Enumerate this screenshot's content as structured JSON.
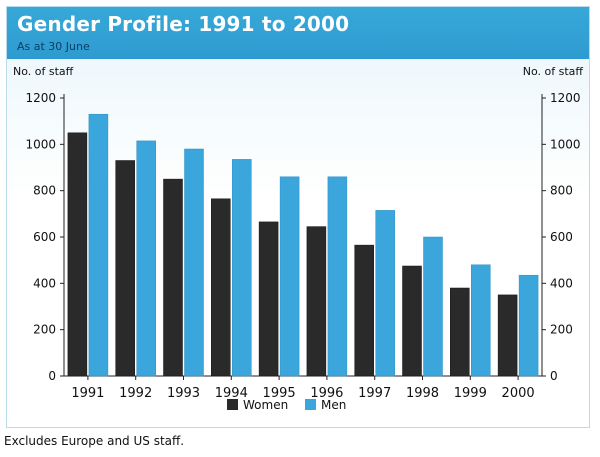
{
  "header": {
    "title": "Gender Profile: 1991 to 2000",
    "subtitle": "As at 30 June"
  },
  "axis": {
    "left_label": "No. of staff",
    "right_label": "No. of staff"
  },
  "footnote": "Excludes Europe and US staff.",
  "colors": {
    "header": "#2e9bd0",
    "women": "#2a2a2a",
    "men": "#3aa6dc"
  },
  "chart_data": {
    "type": "bar",
    "title": "Gender Profile: 1991 to 2000",
    "subtitle": "As at 30 June",
    "xlabel": "",
    "ylabel": "No. of staff",
    "ylim": [
      0,
      1200
    ],
    "yticks": [
      0,
      200,
      400,
      600,
      800,
      1000,
      1200
    ],
    "categories": [
      "1991",
      "1992",
      "1993",
      "1994",
      "1995",
      "1996",
      "1997",
      "1998",
      "1999",
      "2000"
    ],
    "series": [
      {
        "name": "Women",
        "values": [
          1050,
          930,
          850,
          765,
          665,
          645,
          565,
          475,
          380,
          350
        ]
      },
      {
        "name": "Men",
        "values": [
          1130,
          1015,
          980,
          935,
          860,
          860,
          715,
          600,
          480,
          435
        ]
      }
    ],
    "legend": "bottom-center"
  }
}
